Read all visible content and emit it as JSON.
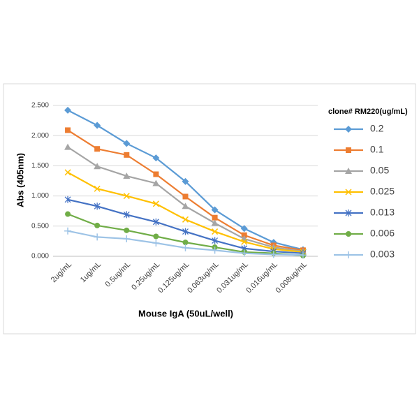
{
  "chart_data": {
    "type": "line",
    "y_label": "Abs (405nm)",
    "x_label": "Mouse IgA (50uL/well)",
    "legend_title": "clone# RM220(ug/mL)",
    "legend": "right",
    "grid": true,
    "categories": [
      "2ug/mL",
      "1ug/mL",
      "0.5ug/mL",
      "0.25ug/mL",
      "0.125ug/mL",
      "0.063ug/mL",
      "0.031ug/mL",
      "0.016ug/mL",
      "0.008ug/mL"
    ],
    "ylim": [
      0,
      2.5
    ],
    "yticks": [
      {
        "value": 0,
        "label": "0.000"
      },
      {
        "value": 0.5,
        "label": "0.500"
      },
      {
        "value": 1,
        "label": "1.000"
      },
      {
        "value": 1.5,
        "label": "1.500"
      },
      {
        "value": 2,
        "label": "2.000"
      },
      {
        "value": 2.5,
        "label": "2.500"
      }
    ],
    "series": [
      {
        "name": "0.2",
        "color": "#5b9bd5",
        "marker": "diamond",
        "values": [
          2.42,
          2.17,
          1.87,
          1.63,
          1.24,
          0.77,
          0.46,
          0.23,
          0.11
        ]
      },
      {
        "name": "0.1",
        "color": "#ed7d31",
        "marker": "square",
        "values": [
          2.09,
          1.78,
          1.68,
          1.36,
          0.99,
          0.64,
          0.35,
          0.18,
          0.1
        ]
      },
      {
        "name": "0.05",
        "color": "#a5a5a5",
        "marker": "triangle",
        "values": [
          1.81,
          1.49,
          1.33,
          1.21,
          0.83,
          0.55,
          0.29,
          0.15,
          0.08
        ]
      },
      {
        "name": "0.025",
        "color": "#ffc000",
        "marker": "x",
        "values": [
          1.39,
          1.12,
          1.0,
          0.87,
          0.61,
          0.41,
          0.24,
          0.12,
          0.07
        ]
      },
      {
        "name": "0.013",
        "color": "#4472c4",
        "marker": "star",
        "values": [
          0.94,
          0.83,
          0.69,
          0.57,
          0.41,
          0.26,
          0.13,
          0.08,
          0.05
        ]
      },
      {
        "name": "0.006",
        "color": "#70ad47",
        "marker": "circle",
        "values": [
          0.7,
          0.51,
          0.43,
          0.33,
          0.23,
          0.15,
          0.07,
          0.05,
          0.01
        ]
      },
      {
        "name": "0.003",
        "color": "#9dc3e6",
        "marker": "plus",
        "values": [
          0.42,
          0.32,
          0.29,
          0.22,
          0.14,
          0.1,
          0.05,
          0.03,
          0.02
        ]
      }
    ]
  }
}
